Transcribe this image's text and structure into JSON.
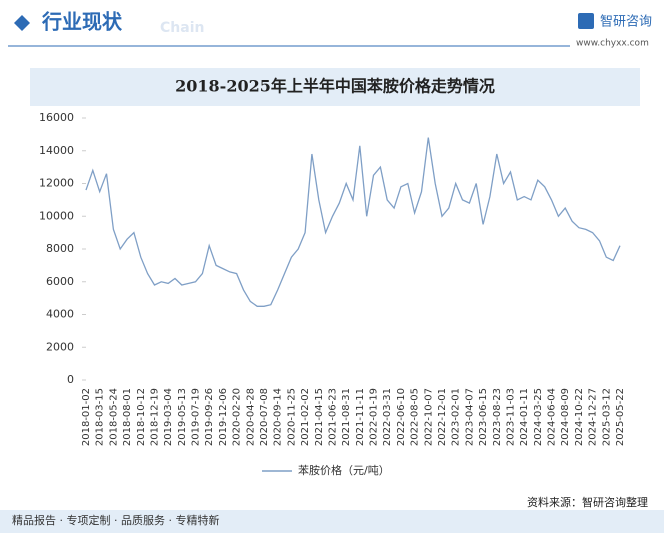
{
  "header": {
    "title": "行业现状",
    "watermark": "Chain",
    "brand": "智研咨询",
    "url": "www.chyxx.com"
  },
  "chart_data": {
    "type": "line",
    "title": "2018-2025年上半年中国苯胺价格走势情况",
    "categories": [
      "2018-01-02",
      null,
      "2018-03-15",
      null,
      "2018-05-24",
      null,
      "2018-08-01",
      null,
      "2018-10-12",
      null,
      "2018-12-19",
      null,
      "2019-03-04",
      null,
      "2019-05-13",
      null,
      "2019-07-19",
      null,
      "2019-09-26",
      null,
      "2019-12-06",
      null,
      "2020-02-20",
      null,
      "2020-04-28",
      null,
      "2020-07-08",
      null,
      "2020-09-14",
      null,
      "2020-11-25",
      null,
      "2021-02-02",
      null,
      "2021-04-15",
      null,
      "2021-06-23",
      null,
      "2021-08-31",
      null,
      "2021-11-11",
      null,
      "2022-01-19",
      null,
      "2022-03-31",
      null,
      "2022-06-10",
      null,
      "2022-08-05",
      null,
      "2022-10-07",
      null,
      "2022-12-01",
      null,
      "2023-02-01",
      null,
      "2023-04-07",
      null,
      "2023-06-15",
      null,
      "2023-08-23",
      null,
      "2023-11-03",
      null,
      "2024-01-11",
      null,
      "2024-03-25",
      null,
      "2024-06-04",
      null,
      "2024-08-09",
      null,
      "2024-10-22",
      null,
      "2024-12-27",
      null,
      "2025-03-12",
      null,
      "2025-05-22"
    ],
    "series": [
      {
        "name": "苯胺价格（元/吨）",
        "color": "#7f9fc6",
        "values": [
          11600,
          12800,
          11500,
          12600,
          9200,
          8000,
          8600,
          9000,
          7500,
          6500,
          5800,
          6000,
          5900,
          6200,
          5800,
          5900,
          6000,
          6500,
          8200,
          7000,
          6800,
          6600,
          6500,
          5500,
          4800,
          4500,
          4500,
          4600,
          5500,
          6500,
          7500,
          8000,
          9000,
          13800,
          11000,
          9000,
          10000,
          10800,
          12000,
          11000,
          14300,
          10000,
          12500,
          13000,
          11000,
          10500,
          11800,
          12000,
          10200,
          11500,
          14800,
          12000,
          10000,
          10500,
          12000,
          11000,
          10800,
          12000,
          9500,
          11200,
          13800,
          12000,
          12700,
          11000,
          11200,
          11000,
          12200,
          11800,
          11000,
          10000,
          10500,
          9700,
          9300,
          9200,
          9000,
          8500,
          7500,
          7300,
          8200
        ]
      }
    ],
    "ylim": [
      0,
      16000
    ],
    "yticks": [
      0,
      2000,
      4000,
      6000,
      8000,
      10000,
      12000,
      14000,
      16000
    ],
    "grid": false
  },
  "source": "资料来源：智研咨询整理",
  "footer": "精品报告 · 专项定制 · 品质服务 · 专精特新"
}
